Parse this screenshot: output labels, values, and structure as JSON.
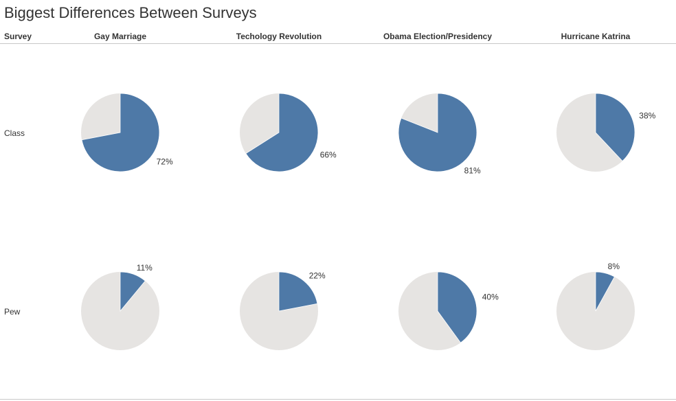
{
  "title": "Biggest Differences Between Surveys",
  "row_header_label": "Survey",
  "colors": {
    "highlight": "#4e79a7",
    "rest": "#e6e4e2",
    "text": "#333333"
  },
  "chart_data": {
    "type": "pie",
    "title": "Biggest Differences Between Surveys",
    "row_dimension": "Survey",
    "rows": [
      "Class",
      "Pew"
    ],
    "columns": [
      "Gay Marriage",
      "Techology Revolution",
      "Obama Election/Presidency",
      "Hurricane Katrina"
    ],
    "values": [
      [
        72,
        66,
        81,
        38
      ],
      [
        11,
        22,
        40,
        8
      ]
    ],
    "labels": [
      [
        "72%",
        "66%",
        "81%",
        "38%"
      ],
      [
        "11%",
        "22%",
        "40%",
        "8%"
      ]
    ]
  }
}
